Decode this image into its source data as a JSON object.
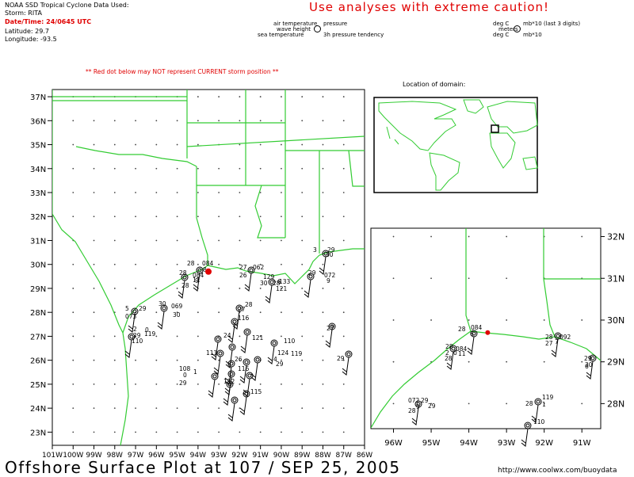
{
  "header": {
    "source": "NOAA SSD Tropical Cyclone Data Used:",
    "storm": "Storm: RITA",
    "datetime": "Date/Time: 24/0645 UTC",
    "latitude": "Latitude: 29.7",
    "longitude": "Longitude: -93.5"
  },
  "caution": "Use analyses with extreme caution!",
  "legend": {
    "air_temp": "air temperature",
    "pressure": "pressure",
    "wave_height": "wave height",
    "sea_temp": "sea temperature",
    "tendency": "3h pressure tendency",
    "deg_c_1": "deg C",
    "mb_1": "mb*10 (last 3 digits)",
    "meters": "meters",
    "deg_c_2": "deg C",
    "mb_2": "mb*10"
  },
  "warning": "** Red dot below may NOT represent CURRENT storm position **",
  "location_title": "Location of domain:",
  "main_map": {
    "lat_labels": [
      "37N",
      "36N",
      "35N",
      "34N",
      "33N",
      "32N",
      "31N",
      "30N",
      "29N",
      "28N",
      "27N",
      "26N",
      "25N",
      "24N",
      "23N"
    ],
    "lon_labels": [
      "101W",
      "100W",
      "99W",
      "98W",
      "97W",
      "96W",
      "95W",
      "94W",
      "93W",
      "92W",
      "91W",
      "90W",
      "89W",
      "88W",
      "87W",
      "86W"
    ],
    "storm_position": {
      "lat": 29.7,
      "lon": -93.5
    },
    "station_labels": [
      "28",
      "084",
      "8",
      "28",
      "084",
      "9",
      "11",
      "28",
      "27",
      "062",
      "26",
      "129",
      "30",
      "6",
      "121",
      "28",
      "133",
      "3",
      "29",
      "30",
      "29",
      "072",
      "9",
      "30",
      "069",
      "30",
      "5",
      "29",
      "073",
      "2",
      "0",
      "29",
      "119",
      "110",
      "28",
      "116",
      "27",
      "121",
      "110",
      "24",
      "111",
      "26",
      "124",
      "119",
      "4",
      "29",
      "108",
      "1",
      "0",
      "116",
      "29",
      "112",
      "115",
      "27",
      "29"
    ],
    "color_coast": "#33cc33",
    "color_storm": "#e00000"
  },
  "zoom_map": {
    "lat_labels": [
      "32N",
      "31N",
      "30N",
      "29N",
      "28N"
    ],
    "lon_labels": [
      "96W",
      "95W",
      "94W",
      "93W",
      "92W",
      "91W"
    ],
    "station_labels": [
      "28",
      "084",
      "6",
      "28",
      "084",
      "2",
      "0",
      "11",
      "28",
      "28",
      "092",
      "27",
      "7",
      "29",
      "072",
      "29",
      "9",
      "28",
      "119",
      "28",
      "1",
      "110",
      "29",
      "30",
      "6"
    ]
  },
  "footer": {
    "title": "Offshore Surface Plot at 107 / SEP 25, 2005",
    "url": "http://www.coolwx.com/buoydata"
  }
}
